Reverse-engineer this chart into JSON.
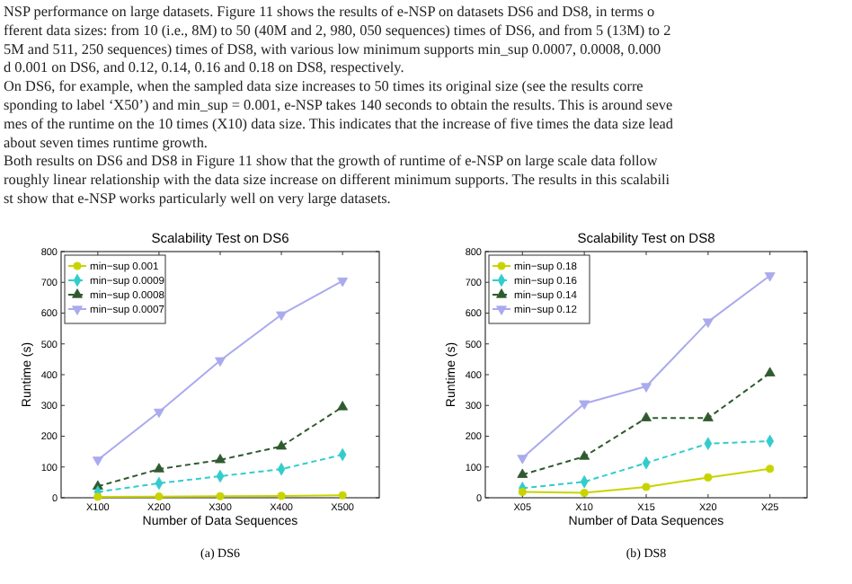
{
  "chart_data": [
    {
      "type": "line",
      "title": "Scalability Test on DS6",
      "xlabel": "Number of Data Sequences",
      "ylabel": "Runtime (s)",
      "categories": [
        "X100",
        "X200",
        "X300",
        "X400",
        "X500"
      ],
      "ylim": [
        0,
        800
      ],
      "yticks": [
        0,
        100,
        200,
        300,
        400,
        500,
        600,
        700,
        800
      ],
      "legend": "top left",
      "grid": false,
      "series": [
        {
          "name": "min−sup 0.001",
          "color": "#c8d400",
          "values": [
            3,
            4,
            5,
            6,
            8
          ],
          "marker": "circle",
          "line_style": "solid"
        },
        {
          "name": "min−sup 0.0009",
          "color": "#33cccc",
          "values": [
            19,
            47,
            70,
            93,
            140
          ],
          "marker": "diamond",
          "line_style": "dashed"
        },
        {
          "name": "min−sup 0.0008",
          "color": "#2f5a2f",
          "values": [
            37,
            93,
            123,
            167,
            295
          ],
          "marker": "triangle",
          "line_style": "dashed"
        },
        {
          "name": "min−sup 0.0007",
          "color": "#aaaaee",
          "values": [
            123,
            279,
            446,
            595,
            705
          ],
          "marker": "triangle-down",
          "line_style": "solid"
        }
      ],
      "annotations": [
        "NSP performance on large datasets. Figure 11 shows the results of e-NSP on datasets DS6 and DS8, in terms o",
        "fferent data sizes: from 10 (i.e., 8M) to 50 (40M and 2, 980, 050 sequences) times of DS6, and from 5 (13M) to 2",
        "5M and 511, 250 sequences) times of DS8, with various low minimum supports min_sup 0.0007, 0.0008, 0.000",
        "d 0.001 on DS6, and 0.12, 0.14, 0.16 and 0.18 on DS8, respectively.",
        "On DS6, for example, when the sampled data size increases to 50 times its original size (see the results corre",
        "sponding to label ‘X50’) and min_sup = 0.001, e-NSP takes 140 seconds to obtain the results. This is around seve",
        "mes of the runtime on the 10 times (X10) data size. This indicates that the increase of five times the data size lead",
        "about seven times runtime growth.",
        "Both results on DS6 and DS8 in Figure 11 show that the growth of runtime of e-NSP on large scale data follow",
        "roughly linear relationship with the data size increase on different minimum supports. The results in this scalabili",
        "st show that e-NSP works particularly well on very large datasets.",
        "(a) DS6"
      ]
    },
    {
      "type": "line",
      "title": "Scalability Test on DS8",
      "xlabel": "Number of Data Sequences",
      "ylabel": "Runtime (s)",
      "categories": [
        "X05",
        "X10",
        "X15",
        "X20",
        "X25"
      ],
      "ylim": [
        0,
        800
      ],
      "yticks": [
        0,
        100,
        200,
        300,
        400,
        500,
        600,
        700,
        800
      ],
      "legend": "top left",
      "grid": false,
      "series": [
        {
          "name": "min−sup 0.18",
          "color": "#c8d400",
          "values": [
            19,
            16,
            35,
            66,
            94
          ],
          "marker": "circle",
          "line_style": "solid"
        },
        {
          "name": "min−sup 0.16",
          "color": "#33cccc",
          "values": [
            31,
            52,
            113,
            176,
            184
          ],
          "marker": "diamond",
          "line_style": "dashed"
        },
        {
          "name": "min−sup 0.14",
          "color": "#2f5a2f",
          "values": [
            75,
            134,
            259,
            259,
            405
          ],
          "marker": "triangle",
          "line_style": "dashed"
        },
        {
          "name": "min−sup 0.12",
          "color": "#aaaaee",
          "values": [
            129,
            306,
            362,
            572,
            722
          ],
          "marker": "triangle-down",
          "line_style": "solid"
        }
      ],
      "annotations": [
        "(b) DS8"
      ]
    }
  ]
}
